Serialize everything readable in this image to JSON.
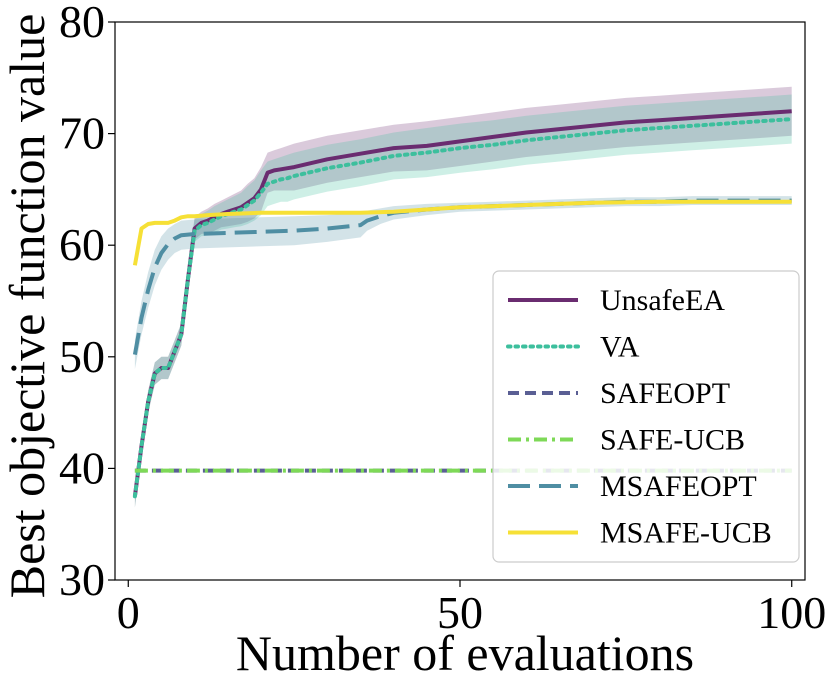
{
  "chart_data": {
    "type": "line",
    "xlabel": "Number of evaluations",
    "ylabel": "Best objective function value",
    "xlim": [
      -2,
      102
    ],
    "ylim": [
      30,
      80
    ],
    "xticks": [
      0,
      50,
      100
    ],
    "yticks": [
      30,
      40,
      50,
      60,
      70,
      80
    ],
    "grid": false,
    "legend_position": "lower-right",
    "series": [
      {
        "name": "UnsafeEA",
        "color": "#6a2c70",
        "style": "solid",
        "x": [
          1,
          2,
          3,
          4,
          5,
          6,
          7,
          8,
          9,
          10,
          11,
          12,
          13,
          14,
          15,
          16,
          17,
          18,
          19,
          20,
          21,
          22,
          23,
          24,
          25,
          30,
          35,
          40,
          45,
          50,
          55,
          60,
          65,
          70,
          75,
          80,
          85,
          90,
          95,
          100
        ],
        "y": [
          37.5,
          42,
          46,
          48.5,
          49,
          49,
          50.5,
          52,
          57,
          61.5,
          62,
          62.2,
          62.5,
          62.8,
          63,
          63.2,
          63.4,
          63.8,
          64.2,
          65,
          66.5,
          66.7,
          66.8,
          66.9,
          67,
          67.7,
          68.2,
          68.7,
          68.9,
          69.3,
          69.7,
          70.1,
          70.4,
          70.7,
          71,
          71.2,
          71.4,
          71.6,
          71.8,
          72
        ],
        "band_upper": [
          38.5,
          43,
          47,
          49.5,
          50,
          50,
          51.5,
          53,
          58,
          62.5,
          63,
          63.3,
          63.7,
          64,
          64.3,
          64.6,
          64.9,
          65.5,
          66,
          67,
          68.3,
          68.5,
          68.7,
          68.9,
          69.1,
          69.8,
          70.3,
          70.8,
          71.1,
          71.5,
          71.9,
          72.3,
          72.6,
          72.9,
          73.2,
          73.4,
          73.6,
          73.8,
          74,
          74.2
        ],
        "band_lower": [
          36.5,
          41,
          45,
          47.5,
          48,
          48,
          49.5,
          51,
          56,
          60.5,
          61,
          61.1,
          61.3,
          61.6,
          61.7,
          61.8,
          61.9,
          62.1,
          62.4,
          63,
          64.7,
          64.9,
          64.9,
          64.9,
          64.9,
          65.6,
          66.1,
          66.6,
          66.7,
          67.1,
          67.5,
          67.9,
          68.2,
          68.5,
          68.8,
          69,
          69.2,
          69.4,
          69.6,
          69.8
        ]
      },
      {
        "name": "VA",
        "color": "#3dbf9d",
        "style": "dotted",
        "x": [
          1,
          2,
          3,
          4,
          5,
          6,
          7,
          8,
          9,
          10,
          11,
          12,
          13,
          14,
          15,
          16,
          17,
          18,
          19,
          20,
          21,
          22,
          23,
          24,
          25,
          30,
          35,
          40,
          45,
          50,
          55,
          60,
          65,
          70,
          75,
          80,
          85,
          90,
          95,
          100
        ],
        "y": [
          37.5,
          42,
          46,
          48.5,
          49,
          49,
          50.5,
          52,
          57,
          61.3,
          61.8,
          62,
          62.3,
          62.6,
          62.8,
          63,
          63.2,
          63.6,
          64,
          64.7,
          65.5,
          65.7,
          65.9,
          66,
          66.2,
          66.9,
          67.4,
          68,
          68.3,
          68.7,
          69,
          69.4,
          69.7,
          70,
          70.3,
          70.5,
          70.7,
          70.9,
          71.1,
          71.3
        ],
        "band_upper": [
          38.5,
          43,
          47,
          49.5,
          50,
          50,
          51.5,
          53,
          58,
          62.3,
          62.8,
          63.1,
          63.5,
          63.8,
          64.1,
          64.4,
          64.7,
          65.3,
          65.8,
          66.7,
          67.5,
          67.7,
          67.9,
          68.1,
          68.3,
          69,
          69.5,
          70.1,
          70.5,
          70.9,
          71.2,
          71.6,
          71.9,
          72.2,
          72.5,
          72.7,
          72.9,
          73.1,
          73.3,
          73.5
        ],
        "band_lower": [
          36.5,
          41,
          45,
          47.5,
          48,
          48,
          49.5,
          51,
          56,
          60.3,
          60.8,
          60.9,
          61.1,
          61.4,
          61.5,
          61.6,
          61.7,
          61.9,
          62.2,
          62.7,
          63.5,
          63.7,
          63.9,
          63.9,
          64.1,
          64.8,
          65.3,
          65.9,
          66.1,
          66.5,
          66.8,
          67.2,
          67.5,
          67.8,
          68.1,
          68.3,
          68.5,
          68.7,
          68.9,
          69.1
        ]
      },
      {
        "name": "SAFEOPT",
        "color": "#5a5f94",
        "style": "dashed",
        "x": [
          1,
          100
        ],
        "y": [
          39.8,
          39.8
        ]
      },
      {
        "name": "SAFE-UCB",
        "color": "#7ed957",
        "style": "dashdot",
        "x": [
          1,
          100
        ],
        "y": [
          39.8,
          39.8
        ]
      },
      {
        "name": "MSAFEOPT",
        "color": "#4f8ea3",
        "style": "longdash",
        "x": [
          1,
          2,
          3,
          4,
          5,
          6,
          7,
          8,
          10,
          15,
          20,
          25,
          30,
          35,
          36,
          38,
          40,
          45,
          50,
          55,
          60,
          65,
          70,
          75,
          80,
          85,
          90,
          95,
          100
        ],
        "y": [
          50.2,
          53.5,
          56,
          58,
          59.3,
          60.1,
          60.6,
          60.9,
          61,
          61.1,
          61.2,
          61.3,
          61.5,
          61.8,
          62.2,
          62.6,
          62.9,
          63.2,
          63.4,
          63.5,
          63.6,
          63.7,
          63.8,
          63.9,
          63.9,
          64,
          64,
          64,
          64
        ],
        "band_upper": [
          51.5,
          55,
          57.6,
          59.6,
          60.8,
          61.5,
          61.9,
          62.2,
          62.3,
          62.4,
          62.5,
          62.6,
          62.7,
          62.9,
          63.1,
          63.3,
          63.5,
          63.7,
          63.8,
          63.9,
          64,
          64.1,
          64.2,
          64.3,
          64.3,
          64.4,
          64.4,
          64.4,
          64.4
        ],
        "band_lower": [
          48.9,
          52,
          54.4,
          56.4,
          57.8,
          58.7,
          59.3,
          59.6,
          59.7,
          59.8,
          59.9,
          60,
          60.3,
          60.7,
          61.3,
          61.9,
          62.3,
          62.7,
          63,
          63.1,
          63.2,
          63.3,
          63.4,
          63.5,
          63.5,
          63.6,
          63.6,
          63.6,
          63.6
        ]
      },
      {
        "name": "MSAFE-UCB",
        "color": "#f6e036",
        "style": "solid",
        "x": [
          1,
          2,
          3,
          4,
          5,
          6,
          7,
          8,
          9,
          10,
          12,
          15,
          20,
          25,
          30,
          35,
          40,
          45,
          50,
          60,
          70,
          80,
          90,
          100
        ],
        "y": [
          58.2,
          61.5,
          61.9,
          62,
          62,
          62,
          62.2,
          62.5,
          62.6,
          62.6,
          62.7,
          62.8,
          62.9,
          62.9,
          62.9,
          62.9,
          63,
          63.2,
          63.4,
          63.6,
          63.8,
          63.9,
          63.9,
          63.9
        ]
      }
    ]
  }
}
